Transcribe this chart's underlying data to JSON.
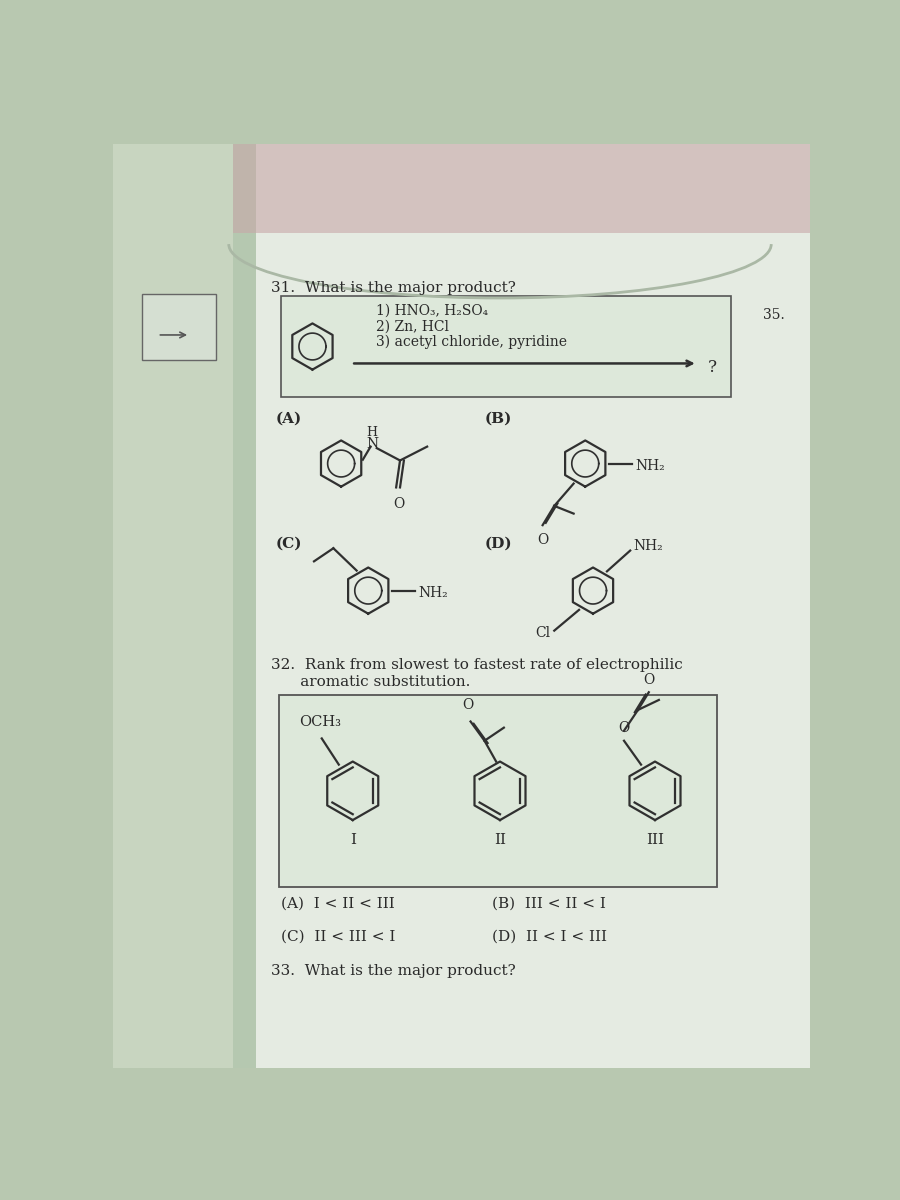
{
  "bg_color_outer": "#b8c8b0",
  "bg_color_left": "#d0ddd0",
  "bg_color_page": "#e8ede5",
  "text_color": "#2a2a2a",
  "q31_title": "31.  What is the major product?",
  "q31_reagent1": "1) HNO₃, H₂SO₄",
  "q31_reagent2": "2) Zn, HCl",
  "q31_reagent3": "3) acetyl chloride, pyridine",
  "q31_arrow_q": "?",
  "q32_title_line1": "32.  Rank from slowest to fastest rate of electrophilic",
  "q32_title_line2": "      aromatic substitution.",
  "q32_label_I": "I",
  "q32_label_II": "II",
  "q32_label_III": "III",
  "q32_label_OCH3": "OCH₃",
  "q32_label_O": "O",
  "q32_ans_A": "(A)  I < II < III",
  "q32_ans_B": "(B)  III < II < I",
  "q32_ans_C": "(C)  II < III < I",
  "q32_ans_D": "(D)  II < I < III",
  "q33_title": "33.  What is the major product?",
  "side_num": "35.",
  "A_label": "(A)",
  "B_label": "(B)",
  "C_label": "(C)",
  "D_label": "(D)",
  "NH2": "NH₂",
  "Cl": "Cl"
}
